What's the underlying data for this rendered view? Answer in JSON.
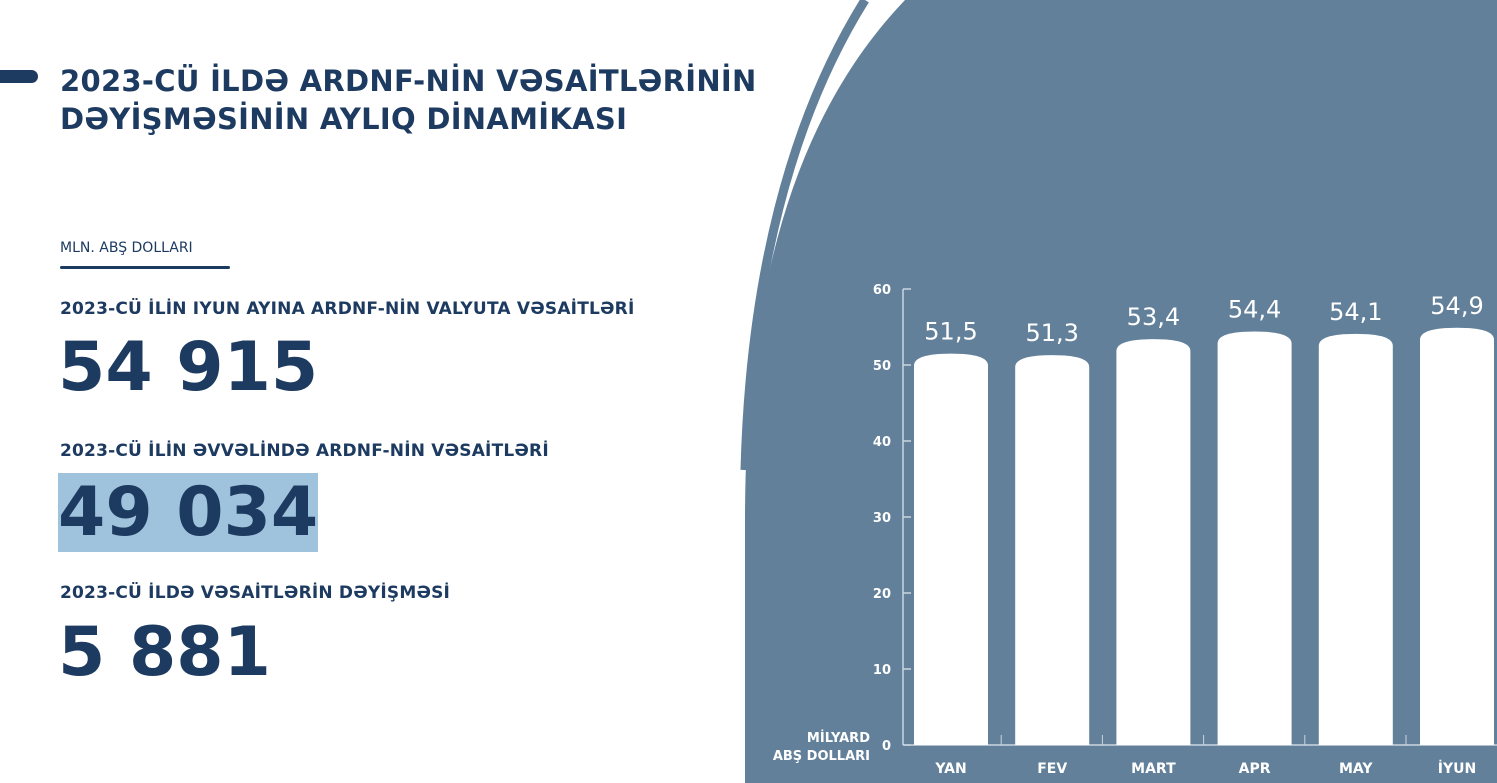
{
  "title_lines": [
    "2023-CÜ İLDƏ ARDNF-NİN VƏSAİTLƏRİNİN",
    "DƏYİŞMƏSİNİN AYLIQ DİNAMİKASI"
  ],
  "unit": "MLN. ABŞ DOLLARI",
  "stats": [
    {
      "label": "2023-CÜ İLİN IYUN AYINA ARDNF-NİN VALYUTA VƏSAİTLƏRİ",
      "value": "54 915"
    },
    {
      "label": "2023-CÜ İLİN ƏVVƏLİNDƏ ARDNF-NİN VƏSAİTLƏRİ",
      "value": "49 034",
      "highlighted": true
    },
    {
      "label": "2023-CÜ İLDƏ VƏSAİTLƏRİN DƏYİŞMƏSİ",
      "value": "5 881"
    }
  ],
  "colors": {
    "navy": "#1d3a60",
    "panel": "#62809a",
    "highlight": "#9fc3dc",
    "bar": "#ffffff"
  },
  "chart_data": {
    "type": "bar",
    "categories": [
      "YAN",
      "FEV",
      "MART",
      "APR",
      "MAY",
      "İYUN"
    ],
    "values": [
      51.5,
      51.3,
      53.4,
      54.4,
      54.1,
      54.9
    ],
    "value_labels": [
      "51,5",
      "51,3",
      "53,4",
      "54,4",
      "54,1",
      "54,9"
    ],
    "ylabel_lines": [
      "MİLYARD",
      "ABŞ DOLLARI"
    ],
    "ylim": [
      0,
      60
    ],
    "yticks": [
      0,
      10,
      20,
      30,
      40,
      50,
      60
    ],
    "grid": false
  }
}
